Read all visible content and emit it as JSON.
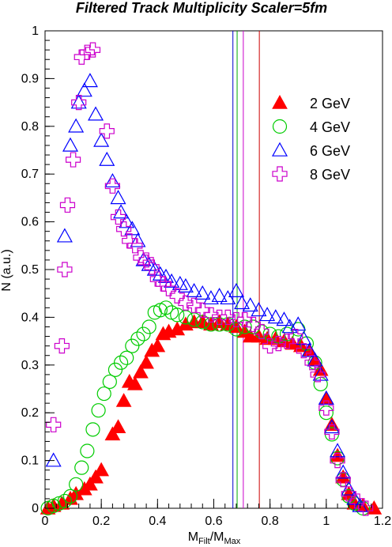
{
  "chart_data": {
    "type": "scatter",
    "title": "Filtered Track Multiplicity Scaler=5fm",
    "xlabel": {
      "main": "M",
      "sub1": "Filt",
      "mid": "/M",
      "sub2": "Max"
    },
    "ylabel": "N (a.u.)",
    "xlim": [
      0,
      1.2
    ],
    "ylim": [
      0,
      1
    ],
    "x_ticks": [
      "0",
      "0.2",
      "0.4",
      "0.6",
      "0.8",
      "1",
      "1.2"
    ],
    "y_ticks": [
      "0",
      "0.1",
      "0.2",
      "0.3",
      "0.4",
      "0.5",
      "0.6",
      "0.7",
      "0.8",
      "0.9",
      "1"
    ],
    "legend_placement": "right",
    "grid": false,
    "vertical_lines": [
      {
        "x": 0.668,
        "color": "#0000cc"
      },
      {
        "x": 0.683,
        "color": "#00aa00"
      },
      {
        "x": 0.705,
        "color": "#cc00cc"
      },
      {
        "x": 0.762,
        "color": "#cc0000"
      }
    ],
    "series": [
      {
        "name": "2 GeV",
        "marker": "triangle-filled",
        "color": "#ff0000",
        "points": [
          [
            0.01,
            0.0
          ],
          [
            0.03,
            0.005
          ],
          [
            0.06,
            0.01
          ],
          [
            0.09,
            0.02
          ],
          [
            0.11,
            0.03
          ],
          [
            0.14,
            0.04
          ],
          [
            0.16,
            0.05
          ],
          [
            0.18,
            0.065
          ],
          [
            0.2,
            0.08
          ],
          [
            0.24,
            0.155
          ],
          [
            0.26,
            0.17
          ],
          [
            0.28,
            0.225
          ],
          [
            0.3,
            0.265
          ],
          [
            0.32,
            0.26
          ],
          [
            0.34,
            0.285
          ],
          [
            0.36,
            0.305
          ],
          [
            0.38,
            0.33
          ],
          [
            0.4,
            0.34
          ],
          [
            0.42,
            0.365
          ],
          [
            0.44,
            0.37
          ],
          [
            0.47,
            0.375
          ],
          [
            0.5,
            0.385
          ],
          [
            0.53,
            0.39
          ],
          [
            0.56,
            0.39
          ],
          [
            0.59,
            0.385
          ],
          [
            0.62,
            0.39
          ],
          [
            0.65,
            0.385
          ],
          [
            0.68,
            0.38
          ],
          [
            0.71,
            0.37
          ],
          [
            0.73,
            0.36
          ],
          [
            0.76,
            0.36
          ],
          [
            0.79,
            0.355
          ],
          [
            0.82,
            0.355
          ],
          [
            0.85,
            0.35
          ],
          [
            0.88,
            0.345
          ],
          [
            0.91,
            0.34
          ],
          [
            0.94,
            0.33
          ],
          [
            0.96,
            0.31
          ],
          [
            0.98,
            0.29
          ],
          [
            1.0,
            0.23
          ],
          [
            1.02,
            0.175
          ],
          [
            1.04,
            0.11
          ],
          [
            1.06,
            0.065
          ],
          [
            1.08,
            0.03
          ],
          [
            1.1,
            0.01
          ],
          [
            1.13,
            0.005
          ],
          [
            1.17,
            0.0
          ]
        ]
      },
      {
        "name": "4 GeV",
        "marker": "circle-open",
        "color": "#00cc00",
        "points": [
          [
            0.01,
            0.0
          ],
          [
            0.03,
            0.005
          ],
          [
            0.05,
            0.01
          ],
          [
            0.07,
            0.015
          ],
          [
            0.09,
            0.025
          ],
          [
            0.11,
            0.05
          ],
          [
            0.13,
            0.085
          ],
          [
            0.15,
            0.12
          ],
          [
            0.17,
            0.165
          ],
          [
            0.19,
            0.205
          ],
          [
            0.21,
            0.24
          ],
          [
            0.23,
            0.265
          ],
          [
            0.25,
            0.29
          ],
          [
            0.27,
            0.305
          ],
          [
            0.29,
            0.315
          ],
          [
            0.31,
            0.34
          ],
          [
            0.33,
            0.355
          ],
          [
            0.35,
            0.365
          ],
          [
            0.37,
            0.38
          ],
          [
            0.39,
            0.41
          ],
          [
            0.41,
            0.415
          ],
          [
            0.43,
            0.42
          ],
          [
            0.45,
            0.41
          ],
          [
            0.47,
            0.405
          ],
          [
            0.5,
            0.4
          ],
          [
            0.53,
            0.395
          ],
          [
            0.56,
            0.39
          ],
          [
            0.59,
            0.385
          ],
          [
            0.62,
            0.385
          ],
          [
            0.65,
            0.385
          ],
          [
            0.68,
            0.375
          ],
          [
            0.71,
            0.38
          ],
          [
            0.74,
            0.38
          ],
          [
            0.77,
            0.37
          ],
          [
            0.8,
            0.365
          ],
          [
            0.83,
            0.36
          ],
          [
            0.86,
            0.365
          ],
          [
            0.9,
            0.375
          ],
          [
            0.93,
            0.345
          ],
          [
            0.96,
            0.305
          ],
          [
            0.98,
            0.26
          ],
          [
            1.0,
            0.2
          ],
          [
            1.02,
            0.155
          ],
          [
            1.04,
            0.105
          ],
          [
            1.06,
            0.06
          ],
          [
            1.08,
            0.025
          ],
          [
            1.1,
            0.01
          ],
          [
            1.13,
            0.0
          ]
        ]
      },
      {
        "name": "6 GeV",
        "marker": "triangle-open",
        "color": "#0000ff",
        "points": [
          [
            0.03,
            0.1
          ],
          [
            0.07,
            0.57
          ],
          [
            0.09,
            0.76
          ],
          [
            0.11,
            0.8
          ],
          [
            0.12,
            0.85
          ],
          [
            0.14,
            0.875
          ],
          [
            0.16,
            0.895
          ],
          [
            0.18,
            0.825
          ],
          [
            0.2,
            0.77
          ],
          [
            0.22,
            0.73
          ],
          [
            0.24,
            0.685
          ],
          [
            0.26,
            0.65
          ],
          [
            0.27,
            0.62
          ],
          [
            0.29,
            0.6
          ],
          [
            0.31,
            0.585
          ],
          [
            0.33,
            0.56
          ],
          [
            0.35,
            0.52
          ],
          [
            0.37,
            0.51
          ],
          [
            0.39,
            0.5
          ],
          [
            0.41,
            0.49
          ],
          [
            0.43,
            0.485
          ],
          [
            0.45,
            0.475
          ],
          [
            0.48,
            0.47
          ],
          [
            0.5,
            0.465
          ],
          [
            0.53,
            0.455
          ],
          [
            0.56,
            0.45
          ],
          [
            0.59,
            0.44
          ],
          [
            0.62,
            0.445
          ],
          [
            0.65,
            0.44
          ],
          [
            0.68,
            0.455
          ],
          [
            0.7,
            0.43
          ],
          [
            0.73,
            0.425
          ],
          [
            0.76,
            0.415
          ],
          [
            0.79,
            0.405
          ],
          [
            0.82,
            0.4
          ],
          [
            0.85,
            0.395
          ],
          [
            0.87,
            0.38
          ],
          [
            0.9,
            0.385
          ],
          [
            0.92,
            0.355
          ],
          [
            0.94,
            0.33
          ],
          [
            0.96,
            0.31
          ],
          [
            0.98,
            0.28
          ],
          [
            1.0,
            0.23
          ],
          [
            1.02,
            0.17
          ],
          [
            1.04,
            0.12
          ],
          [
            1.06,
            0.075
          ],
          [
            1.08,
            0.04
          ],
          [
            1.1,
            0.02
          ],
          [
            1.12,
            0.005
          ]
        ]
      },
      {
        "name": "8 GeV",
        "marker": "cross-open",
        "color": "#cc00cc",
        "points": [
          [
            0.03,
            0.175
          ],
          [
            0.06,
            0.34
          ],
          [
            0.07,
            0.5
          ],
          [
            0.08,
            0.635
          ],
          [
            0.1,
            0.73
          ],
          [
            0.12,
            0.85
          ],
          [
            0.13,
            0.945
          ],
          [
            0.15,
            0.955
          ],
          [
            0.17,
            0.96
          ],
          [
            0.22,
            0.79
          ],
          [
            0.24,
            0.675
          ],
          [
            0.26,
            0.61
          ],
          [
            0.28,
            0.585
          ],
          [
            0.3,
            0.56
          ],
          [
            0.32,
            0.55
          ],
          [
            0.34,
            0.525
          ],
          [
            0.36,
            0.52
          ],
          [
            0.38,
            0.505
          ],
          [
            0.4,
            0.48
          ],
          [
            0.42,
            0.47
          ],
          [
            0.44,
            0.46
          ],
          [
            0.47,
            0.445
          ],
          [
            0.5,
            0.43
          ],
          [
            0.53,
            0.425
          ],
          [
            0.56,
            0.415
          ],
          [
            0.59,
            0.405
          ],
          [
            0.62,
            0.4
          ],
          [
            0.65,
            0.4
          ],
          [
            0.68,
            0.395
          ],
          [
            0.71,
            0.395
          ],
          [
            0.74,
            0.385
          ],
          [
            0.77,
            0.37
          ],
          [
            0.8,
            0.34
          ],
          [
            0.83,
            0.345
          ],
          [
            0.86,
            0.35
          ],
          [
            0.89,
            0.36
          ],
          [
            0.92,
            0.33
          ],
          [
            0.95,
            0.305
          ],
          [
            0.97,
            0.28
          ],
          [
            1.0,
            0.21
          ],
          [
            1.02,
            0.16
          ],
          [
            1.04,
            0.1
          ],
          [
            1.06,
            0.06
          ],
          [
            1.08,
            0.03
          ],
          [
            1.11,
            0.015
          ],
          [
            1.14,
            0.0
          ]
        ]
      }
    ]
  }
}
